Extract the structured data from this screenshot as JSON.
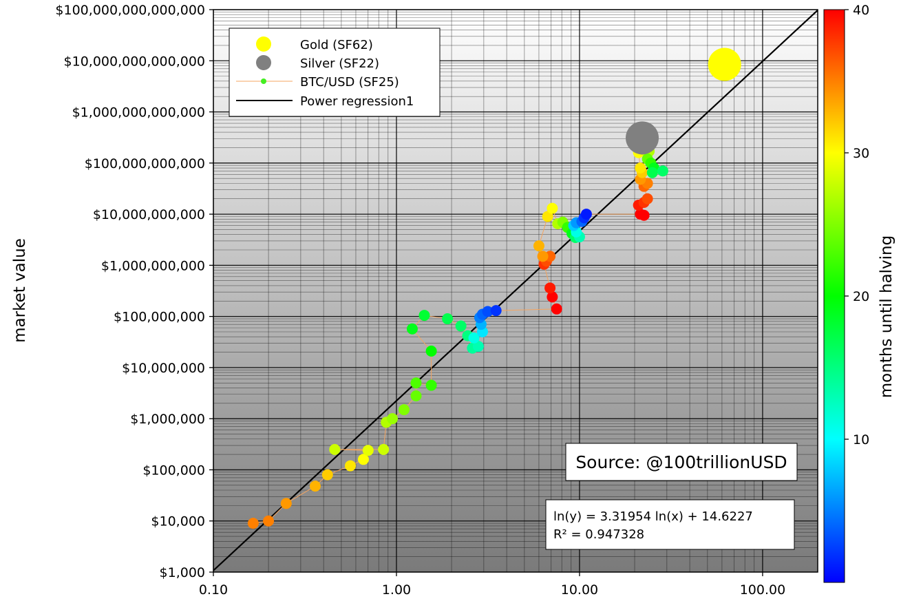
{
  "chart_data": {
    "type": "scatter",
    "x_scale": "log",
    "y_scale": "log",
    "xlim": [
      0.1,
      200
    ],
    "ylim": [
      1000,
      100000000000000
    ],
    "ylabel": "market value",
    "x_tick_values": [
      0.1,
      1,
      10,
      100
    ],
    "x_tick_labels": [
      "0.10",
      "1.00",
      "10.00",
      "100.00"
    ],
    "y_tick_values": [
      1000,
      10000,
      100000,
      1000000,
      10000000,
      100000000,
      1000000000,
      10000000000,
      100000000000,
      1000000000000,
      10000000000000,
      100000000000000
    ],
    "y_tick_labels": [
      "$1,000",
      "$10,000",
      "$100,000",
      "$1,000,000",
      "$10,000,000",
      "$100,000,000",
      "$1,000,000,000",
      "$10,000,000,000",
      "$100,000,000,000",
      "$1,000,000,000,000",
      "$10,000,000,000,000",
      "$100,000,000,000,000"
    ],
    "grid": true,
    "legend_position": "top-left",
    "legend": [
      {
        "label": "Gold (SF62)",
        "color": "#ffff00",
        "marker": "circle"
      },
      {
        "label": "Silver (SF22)",
        "color": "#808080",
        "marker": "circle"
      },
      {
        "label": "BTC/USD (SF25)",
        "color": "#f4a460",
        "marker": "line-dot"
      },
      {
        "label": "Power regression1",
        "color": "#000000",
        "marker": "line"
      }
    ],
    "colorbar": {
      "label": "months until halving",
      "min": 0,
      "max": 40,
      "tick_values": [
        10,
        20,
        30,
        40
      ],
      "tick_labels": [
        "10",
        "20",
        "30",
        "40"
      ]
    },
    "annotations": {
      "source": "Source: @100trillionUSD",
      "equation": "ln(y) = 3.31954 ln(x) + 14.6227",
      "r_squared": "R² = 0.947328"
    },
    "regression": {
      "slope": 3.31954,
      "intercept": 14.6227
    },
    "series": [
      {
        "name": "Gold (SF62)",
        "points": [
          {
            "x": 62,
            "y": 8500000000000,
            "months": 27
          }
        ]
      },
      {
        "name": "Silver (SF22)",
        "points": [
          {
            "x": 22,
            "y": 310000000000,
            "months": 0
          }
        ]
      },
      {
        "name": "BTC/USD (SF25)",
        "points": [
          {
            "x": 0.165,
            "y": 9000,
            "months": 35
          },
          {
            "x": 0.2,
            "y": 10000,
            "months": 35
          },
          {
            "x": 0.25,
            "y": 22000,
            "months": 34
          },
          {
            "x": 0.36,
            "y": 48000,
            "months": 33
          },
          {
            "x": 0.42,
            "y": 80000,
            "months": 32
          },
          {
            "x": 0.56,
            "y": 120000,
            "months": 31
          },
          {
            "x": 0.66,
            "y": 160000,
            "months": 30
          },
          {
            "x": 0.7,
            "y": 240000,
            "months": 29
          },
          {
            "x": 0.46,
            "y": 250000,
            "months": 28
          },
          {
            "x": 0.85,
            "y": 250000,
            "months": 28
          },
          {
            "x": 0.88,
            "y": 850000,
            "months": 27
          },
          {
            "x": 0.95,
            "y": 1000000,
            "months": 26
          },
          {
            "x": 1.1,
            "y": 1500000,
            "months": 25
          },
          {
            "x": 1.28,
            "y": 2800000,
            "months": 24
          },
          {
            "x": 1.28,
            "y": 5000000,
            "months": 23
          },
          {
            "x": 1.55,
            "y": 4500000,
            "months": 22
          },
          {
            "x": 1.55,
            "y": 21000000,
            "months": 20
          },
          {
            "x": 1.22,
            "y": 57000000,
            "months": 19
          },
          {
            "x": 1.42,
            "y": 105000000,
            "months": 18
          },
          {
            "x": 1.9,
            "y": 90000000,
            "months": 17
          },
          {
            "x": 2.25,
            "y": 65000000,
            "months": 16
          },
          {
            "x": 2.45,
            "y": 42000000,
            "months": 15
          },
          {
            "x": 2.6,
            "y": 24000000,
            "months": 14
          },
          {
            "x": 2.8,
            "y": 26000000,
            "months": 13
          },
          {
            "x": 2.65,
            "y": 38000000,
            "months": 11
          },
          {
            "x": 2.95,
            "y": 50000000,
            "months": 9
          },
          {
            "x": 2.9,
            "y": 70000000,
            "months": 7
          },
          {
            "x": 2.85,
            "y": 95000000,
            "months": 5
          },
          {
            "x": 2.95,
            "y": 110000000,
            "months": 4
          },
          {
            "x": 3.15,
            "y": 125000000,
            "months": 3
          },
          {
            "x": 3.5,
            "y": 130000000,
            "months": 2
          },
          {
            "x": 7.5,
            "y": 140000000,
            "months": 40
          },
          {
            "x": 7.1,
            "y": 240000000,
            "months": 40
          },
          {
            "x": 6.9,
            "y": 360000000,
            "months": 39
          },
          {
            "x": 6.4,
            "y": 1050000000,
            "months": 38
          },
          {
            "x": 6.6,
            "y": 1200000000,
            "months": 37
          },
          {
            "x": 6.9,
            "y": 1500000000,
            "months": 36
          },
          {
            "x": 6.3,
            "y": 1500000000,
            "months": 34
          },
          {
            "x": 6.0,
            "y": 2400000000,
            "months": 33
          },
          {
            "x": 6.7,
            "y": 9000000000,
            "months": 31
          },
          {
            "x": 7.1,
            "y": 13000000000,
            "months": 30
          },
          {
            "x": 7.6,
            "y": 6500000000,
            "months": 27
          },
          {
            "x": 8.1,
            "y": 7000000000,
            "months": 25
          },
          {
            "x": 8.6,
            "y": 5500000000,
            "months": 22
          },
          {
            "x": 9.1,
            "y": 4200000000,
            "months": 19
          },
          {
            "x": 9.5,
            "y": 3500000000,
            "months": 16
          },
          {
            "x": 10.0,
            "y": 3600000000,
            "months": 13
          },
          {
            "x": 9.6,
            "y": 4500000000,
            "months": 11
          },
          {
            "x": 9.3,
            "y": 6000000000,
            "months": 8
          },
          {
            "x": 9.6,
            "y": 6800000000,
            "months": 6
          },
          {
            "x": 10.3,
            "y": 7200000000,
            "months": 4
          },
          {
            "x": 10.6,
            "y": 8500000000,
            "months": 2
          },
          {
            "x": 10.9,
            "y": 10000000000,
            "months": 1
          },
          {
            "x": 21.5,
            "y": 10000000000,
            "months": 40
          },
          {
            "x": 22.5,
            "y": 9500000000,
            "months": 40
          },
          {
            "x": 21.0,
            "y": 15000000000,
            "months": 39
          },
          {
            "x": 22.5,
            "y": 17000000000,
            "months": 38
          },
          {
            "x": 23.5,
            "y": 20000000000,
            "months": 37
          },
          {
            "x": 22.5,
            "y": 35000000000,
            "months": 36
          },
          {
            "x": 23.5,
            "y": 40000000000,
            "months": 35
          },
          {
            "x": 21.5,
            "y": 48000000000,
            "months": 34
          },
          {
            "x": 22.0,
            "y": 65000000000,
            "months": 32
          },
          {
            "x": 21.5,
            "y": 80000000000,
            "months": 31
          },
          {
            "x": 21.0,
            "y": 160000000000,
            "months": 30
          },
          {
            "x": 21.5,
            "y": 220000000000,
            "months": 29
          },
          {
            "x": 22.5,
            "y": 180000000000,
            "months": 28
          },
          {
            "x": 24.0,
            "y": 170000000000,
            "months": 27
          },
          {
            "x": 23.5,
            "y": 120000000000,
            "months": 24
          },
          {
            "x": 24.5,
            "y": 100000000000,
            "months": 22
          },
          {
            "x": 25.5,
            "y": 80000000000,
            "months": 19
          },
          {
            "x": 25.0,
            "y": 65000000000,
            "months": 17
          },
          {
            "x": 28.5,
            "y": 70000000000,
            "months": 16
          }
        ]
      }
    ]
  }
}
